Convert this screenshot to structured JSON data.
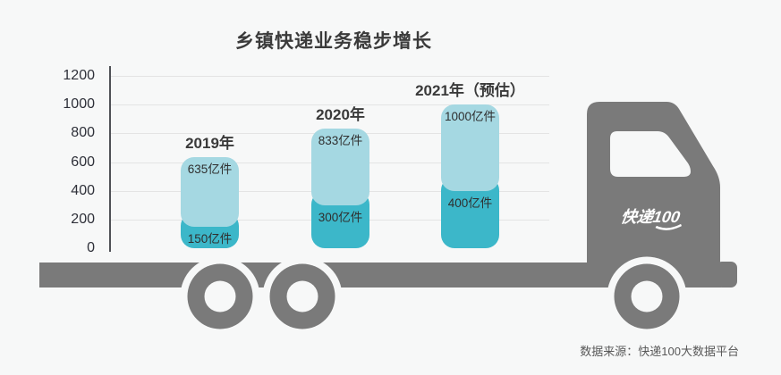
{
  "page": {
    "background": "#f7f8f8"
  },
  "chart_data": {
    "type": "bar",
    "stacked": true,
    "title": "乡镇快递业务稳步增长",
    "unit": "亿件",
    "xlabel": "",
    "ylabel": "",
    "ylim": [
      0,
      1200
    ],
    "y_ticks": [
      1200,
      1000,
      800,
      600,
      400,
      200,
      0
    ],
    "grid": true,
    "legend_position": "none",
    "categories": [
      "2019年",
      "2020年",
      "2021年（预估）"
    ],
    "bars": [
      {
        "category": "2019年",
        "total_value": 635,
        "total_label": "635亿件",
        "base_value": 150,
        "base_label": "150亿件"
      },
      {
        "category": "2020年",
        "total_value": 833,
        "total_label": "833亿件",
        "base_value": 300,
        "base_label": "300亿件"
      },
      {
        "category": "2021年（预估）",
        "total_value": 1000,
        "total_label": "1000亿件",
        "base_value": 400,
        "base_label": "400亿件"
      }
    ],
    "colors": {
      "segment_top": "#a5d8e2",
      "segment_bottom": "#3cb7c9"
    }
  },
  "truck": {
    "logo": "快递100",
    "color": "#7a7a7a"
  },
  "source": {
    "text": "数据来源：快递100大数据平台"
  }
}
